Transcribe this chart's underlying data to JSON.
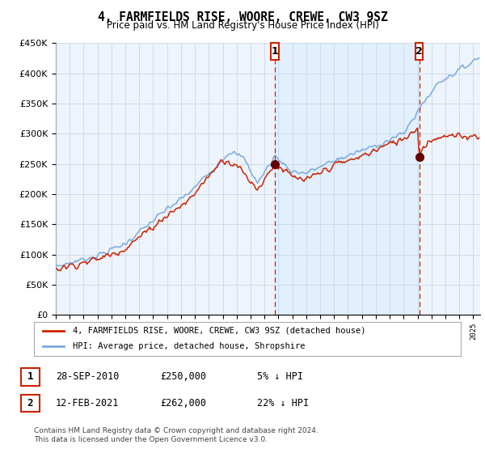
{
  "title": "4, FARMFIELDS RISE, WOORE, CREWE, CW3 9SZ",
  "subtitle": "Price paid vs. HM Land Registry's House Price Index (HPI)",
  "legend_line1": "4, FARMFIELDS RISE, WOORE, CREWE, CW3 9SZ (detached house)",
  "legend_line2": "HPI: Average price, detached house, Shropshire",
  "sale1_date": "28-SEP-2010",
  "sale1_price": "£250,000",
  "sale1_hpi": "5% ↓ HPI",
  "sale1_year": 2010.75,
  "sale1_price_val": 250000,
  "sale2_date": "12-FEB-2021",
  "sale2_price": "£262,000",
  "sale2_hpi": "22% ↓ HPI",
  "sale2_year": 2021.12,
  "sale2_price_val": 262000,
  "footer": "Contains HM Land Registry data © Crown copyright and database right 2024.\nThis data is licensed under the Open Government Licence v3.0.",
  "hpi_color": "#7aaadd",
  "property_color": "#cc2200",
  "marker_color": "#660000",
  "vline_color": "#cc2200",
  "shade_color": "#ddeeff",
  "plot_bg": "#eef4fb",
  "grid_color": "#c8d8e8",
  "ylim": [
    0,
    450000
  ],
  "xlim_start": 1995,
  "xlim_end": 2025.5
}
